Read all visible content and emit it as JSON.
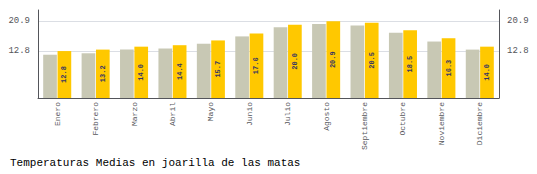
{
  "chart_data": {
    "type": "bar",
    "title": "Temperaturas Medias en joarilla de las matas",
    "categories": [
      "Enero",
      "Febrero",
      "Marzo",
      "Abril",
      "Mayo",
      "Junio",
      "Julio",
      "Agosto",
      "Septiembre",
      "Octubre",
      "Noviembre",
      "Diciembre"
    ],
    "series": [
      {
        "color": "#C8C8B4",
        "values": [
          11.8,
          12.2,
          13.2,
          13.5,
          14.8,
          16.8,
          19.3,
          20.2,
          19.8,
          17.8,
          15.4,
          13.2
        ]
      },
      {
        "color": "#FFC800",
        "values": [
          12.8,
          13.2,
          14.0,
          14.4,
          15.7,
          17.6,
          20.0,
          20.9,
          20.5,
          18.5,
          16.3,
          14.0
        ],
        "value_labels": [
          "12.8",
          "13.2",
          "14.0",
          "14.4",
          "15.7",
          "17.6",
          "20.0",
          "20.9",
          "20.5",
          "18.5",
          "16.3",
          "14.0"
        ],
        "data_labels": true
      }
    ],
    "ylim": [
      0,
      24
    ],
    "yticks": [
      12.8,
      20.9
    ],
    "y2lim": [
      0,
      24
    ],
    "y2ticks": [
      12.8,
      20.9
    ],
    "grid": true
  }
}
